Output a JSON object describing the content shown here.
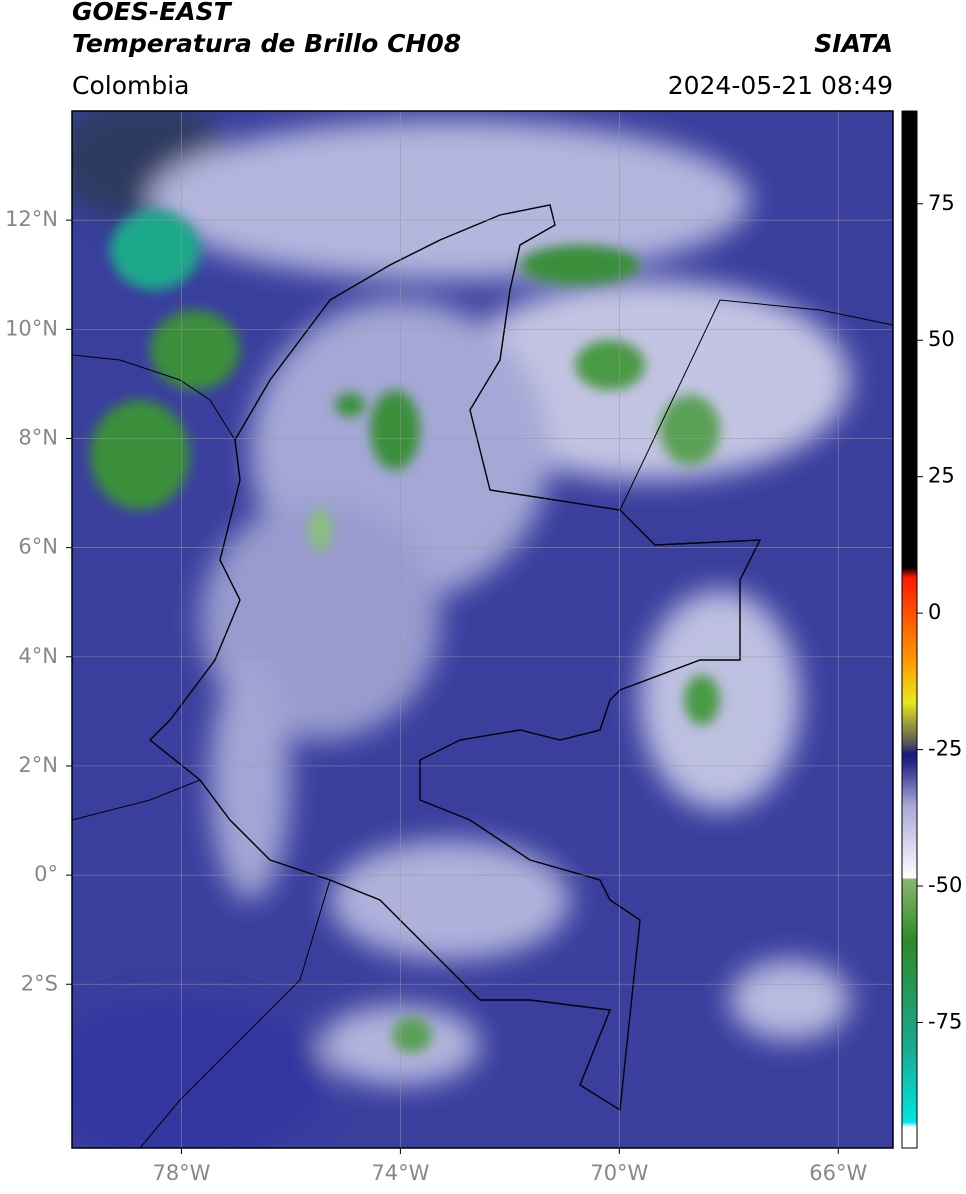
{
  "header": {
    "title": "GOES-EAST",
    "subtitle": "Temperatura de Brillo CH08",
    "source": "SIATA",
    "region": "Colombia",
    "datetime": "2024-05-21 08:49"
  },
  "map": {
    "type": "map",
    "xlim": [
      -80,
      -65
    ],
    "ylim": [
      -5,
      14
    ],
    "xticks": [
      {
        "value": -78,
        "label": "78°W"
      },
      {
        "value": -74,
        "label": "74°W"
      },
      {
        "value": -70,
        "label": "70°W"
      },
      {
        "value": -66,
        "label": "66°W"
      }
    ],
    "yticks": [
      {
        "value": 12,
        "label": "12°N"
      },
      {
        "value": 10,
        "label": "10°N"
      },
      {
        "value": 8,
        "label": "8°N"
      },
      {
        "value": 6,
        "label": "6°N"
      },
      {
        "value": 4,
        "label": "4°N"
      },
      {
        "value": 2,
        "label": "2°N"
      },
      {
        "value": 0,
        "label": "0°"
      },
      {
        "value": -2,
        "label": "2°S"
      }
    ],
    "grid": true
  },
  "colorbar": {
    "lim": [
      -98,
      92
    ],
    "ticks": [
      75,
      50,
      25,
      0,
      -25,
      -50,
      -75
    ]
  }
}
